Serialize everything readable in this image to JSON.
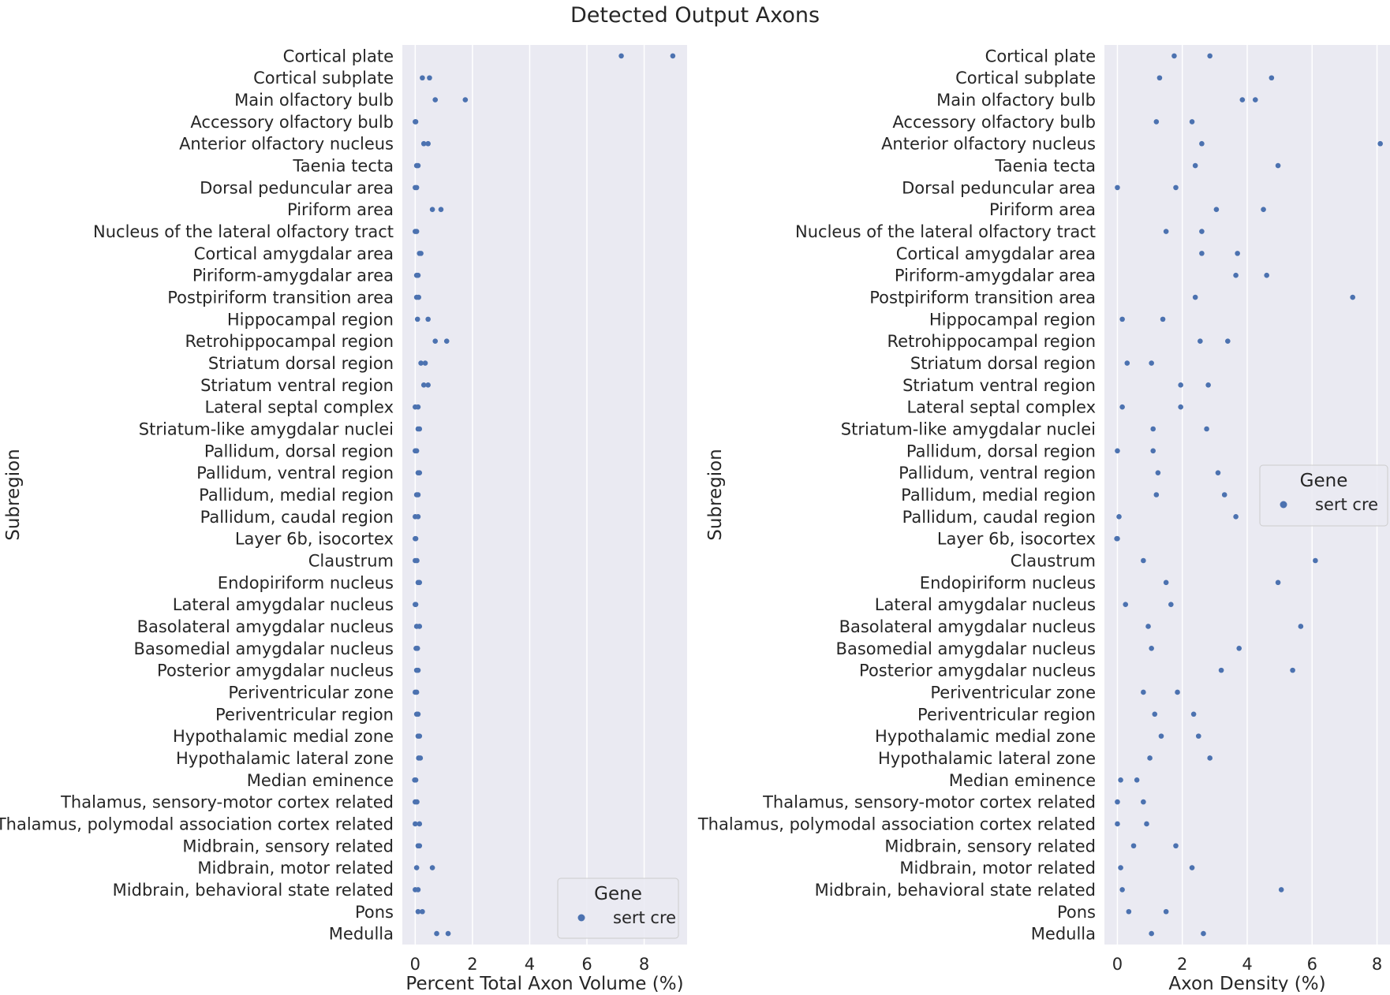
{
  "figure": {
    "title": "Detected Output Axons"
  },
  "chart_data": [
    {
      "type": "scatter",
      "orientation": "horizontal",
      "xlabel": "Percent Total Axon Volume (%)",
      "ylabel": "Subregion",
      "xlim": [
        -0.45,
        9.5
      ],
      "xticks": [
        0,
        2,
        4,
        6,
        8
      ],
      "grid": true,
      "legend": {
        "title": "Gene",
        "placement": "lower-right",
        "entries": [
          "sert cre"
        ]
      },
      "marker_color": "#4c72b0",
      "background_color": "#eaeaf2",
      "categories": [
        "Cortical plate",
        "Cortical subplate",
        "Main olfactory bulb",
        "Accessory olfactory bulb",
        "Anterior olfactory nucleus",
        "Taenia tecta",
        "Dorsal peduncular area",
        "Piriform area",
        "Nucleus of the lateral olfactory tract",
        "Cortical amygdalar area",
        "Piriform-amygdalar area",
        "Postpiriform transition area",
        "Hippocampal region",
        "Retrohippocampal region",
        "Striatum dorsal region",
        "Striatum ventral region",
        "Lateral septal complex",
        "Striatum-like amygdalar nuclei",
        "Pallidum, dorsal region",
        "Pallidum, ventral region",
        "Pallidum, medial region",
        "Pallidum, caudal region",
        "Layer 6b, isocortex",
        "Claustrum",
        "Endopiriform nucleus",
        "Lateral amygdalar nucleus",
        "Basolateral amygdalar nucleus",
        "Basomedial amygdalar nucleus",
        "Posterior amygdalar nucleus",
        "Periventricular zone",
        "Periventricular region",
        "Hypothalamic medial zone",
        "Hypothalamic lateral zone",
        "Median eminence",
        "Thalamus, sensory-motor cortex related",
        "Thalamus, polymodal association cortex related",
        "Midbrain, sensory related",
        "Midbrain, motor related",
        "Midbrain, behavioral state related",
        "Pons",
        "Medulla"
      ],
      "series": [
        {
          "name": "sert cre",
          "values": [
            [
              7.2,
              9.0
            ],
            [
              0.25,
              0.5
            ],
            [
              0.7,
              1.75
            ],
            [
              0.0,
              0.02
            ],
            [
              0.3,
              0.45
            ],
            [
              0.05,
              0.1
            ],
            [
              0.0,
              0.05
            ],
            [
              0.6,
              0.9
            ],
            [
              0.0,
              0.05
            ],
            [
              0.15,
              0.2
            ],
            [
              0.05,
              0.1
            ],
            [
              0.05,
              0.12
            ],
            [
              0.08,
              0.45
            ],
            [
              0.7,
              1.1
            ],
            [
              0.2,
              0.35
            ],
            [
              0.3,
              0.45
            ],
            [
              0.0,
              0.1
            ],
            [
              0.1,
              0.15
            ],
            [
              0.0,
              0.05
            ],
            [
              0.1,
              0.15
            ],
            [
              0.05,
              0.1
            ],
            [
              0.0,
              0.1
            ],
            [
              0.0,
              0.02
            ],
            [
              0.0,
              0.06
            ],
            [
              0.1,
              0.15
            ],
            [
              0.0,
              0.02
            ],
            [
              0.05,
              0.15
            ],
            [
              0.03,
              0.08
            ],
            [
              0.05,
              0.1
            ],
            [
              0.0,
              0.05
            ],
            [
              0.05,
              0.1
            ],
            [
              0.1,
              0.15
            ],
            [
              0.12,
              0.18
            ],
            [
              -0.02,
              0.02
            ],
            [
              0.0,
              0.06
            ],
            [
              0.0,
              0.15
            ],
            [
              0.1,
              0.15
            ],
            [
              0.05,
              0.6
            ],
            [
              0.0,
              0.1
            ],
            [
              0.1,
              0.25
            ],
            [
              0.75,
              1.15
            ]
          ]
        }
      ]
    },
    {
      "type": "scatter",
      "orientation": "horizontal",
      "xlabel": "Axon Density (%)",
      "ylabel": "Subregion",
      "xlim": [
        -0.4,
        8.4
      ],
      "xticks": [
        0,
        2,
        4,
        6,
        8
      ],
      "grid": true,
      "legend": {
        "title": "Gene",
        "placement": "center-right",
        "entries": [
          "sert cre"
        ]
      },
      "marker_color": "#4c72b0",
      "background_color": "#eaeaf2",
      "categories": [
        "Cortical plate",
        "Cortical subplate",
        "Main olfactory bulb",
        "Accessory olfactory bulb",
        "Anterior olfactory nucleus",
        "Taenia tecta",
        "Dorsal peduncular area",
        "Piriform area",
        "Nucleus of the lateral olfactory tract",
        "Cortical amygdalar area",
        "Piriform-amygdalar area",
        "Postpiriform transition area",
        "Hippocampal region",
        "Retrohippocampal region",
        "Striatum dorsal region",
        "Striatum ventral region",
        "Lateral septal complex",
        "Striatum-like amygdalar nuclei",
        "Pallidum, dorsal region",
        "Pallidum, ventral region",
        "Pallidum, medial region",
        "Pallidum, caudal region",
        "Layer 6b, isocortex",
        "Claustrum",
        "Endopiriform nucleus",
        "Lateral amygdalar nucleus",
        "Basolateral amygdalar nucleus",
        "Basomedial amygdalar nucleus",
        "Posterior amygdalar nucleus",
        "Periventricular zone",
        "Periventricular region",
        "Hypothalamic medial zone",
        "Hypothalamic lateral zone",
        "Median eminence",
        "Thalamus, sensory-motor cortex related",
        "Thalamus, polymodal association cortex related",
        "Midbrain, sensory related",
        "Midbrain, motor related",
        "Midbrain, behavioral state related",
        "Pons",
        "Medulla"
      ],
      "series": [
        {
          "name": "sert cre",
          "values": [
            [
              1.75,
              2.85
            ],
            [
              1.3,
              4.75
            ],
            [
              3.85,
              4.25
            ],
            [
              1.2,
              2.3
            ],
            [
              2.6,
              8.1
            ],
            [
              2.4,
              4.95
            ],
            [
              0.0,
              1.8
            ],
            [
              3.05,
              4.5
            ],
            [
              1.5,
              2.6
            ],
            [
              2.6,
              3.7
            ],
            [
              3.65,
              4.6
            ],
            [
              2.4,
              7.25
            ],
            [
              0.15,
              1.4
            ],
            [
              2.55,
              3.4
            ],
            [
              0.3,
              1.05
            ],
            [
              1.95,
              2.8
            ],
            [
              0.15,
              1.95
            ],
            [
              1.1,
              2.75
            ],
            [
              0.0,
              1.1
            ],
            [
              1.25,
              3.1
            ],
            [
              1.2,
              3.3
            ],
            [
              0.05,
              3.65
            ],
            [
              -0.02,
              0.0
            ],
            [
              0.8,
              6.1
            ],
            [
              1.5,
              4.95
            ],
            [
              0.25,
              1.65
            ],
            [
              0.95,
              5.65
            ],
            [
              1.05,
              3.75
            ],
            [
              3.2,
              5.4
            ],
            [
              0.8,
              1.85
            ],
            [
              1.15,
              2.35
            ],
            [
              1.35,
              2.5
            ],
            [
              1.0,
              2.85
            ],
            [
              0.1,
              0.6
            ],
            [
              0.0,
              0.8
            ],
            [
              0.0,
              0.9
            ],
            [
              0.5,
              1.8
            ],
            [
              0.1,
              2.3
            ],
            [
              0.15,
              5.05
            ],
            [
              0.35,
              1.5
            ],
            [
              1.05,
              2.65
            ]
          ]
        }
      ]
    }
  ]
}
